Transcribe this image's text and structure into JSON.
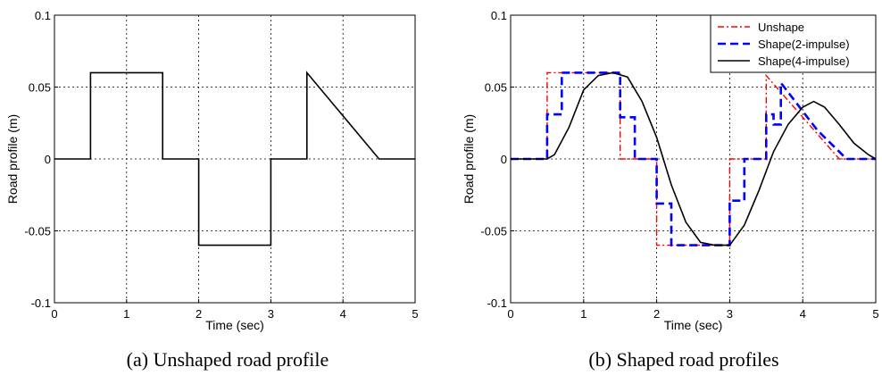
{
  "chart_data": [
    {
      "type": "line",
      "caption": "(a) Unshaped road profile",
      "xlabel": "Time (sec)",
      "ylabel": "Road profile (m)",
      "xlim": [
        0,
        5
      ],
      "ylim": [
        -0.1,
        0.1
      ],
      "xticks": [
        "0",
        "1",
        "2",
        "3",
        "4",
        "5"
      ],
      "yticks": [
        "-0.1",
        "-0.05",
        "0",
        "0.05",
        "0.1"
      ],
      "grid": true,
      "series": [
        {
          "color": "#000000",
          "style": "solid",
          "x": [
            0,
            0.5,
            0.5,
            1.5,
            1.5,
            2.0,
            2.0,
            3.0,
            3.0,
            3.5,
            3.5,
            4.5,
            5.0
          ],
          "y": [
            0,
            0,
            0.06,
            0.06,
            0,
            0,
            -0.06,
            -0.06,
            0,
            0,
            0.06,
            0,
            0
          ]
        }
      ]
    },
    {
      "type": "line",
      "caption": "(b)  Shaped road profiles",
      "xlabel": "Time (sec)",
      "ylabel": "Road profile (m)",
      "xlim": [
        0,
        5
      ],
      "ylim": [
        -0.1,
        0.1
      ],
      "xticks": [
        "0",
        "1",
        "2",
        "3",
        "4",
        "5"
      ],
      "yticks": [
        "-0.1",
        "-0.05",
        "0",
        "0.05",
        "0.1"
      ],
      "grid": true,
      "legend_position": "top-right",
      "series": [
        {
          "name": "Unshape",
          "color": "#ff0000",
          "style": "dashdot",
          "x": [
            0,
            0.5,
            0.5,
            1.5,
            1.5,
            2.0,
            2.0,
            3.0,
            3.0,
            3.5,
            3.5,
            4.5,
            5.0
          ],
          "y": [
            0,
            0,
            0.06,
            0.06,
            0,
            0,
            -0.06,
            -0.06,
            0,
            0,
            0.058,
            0,
            0
          ]
        },
        {
          "name": "Shape(2-impulse)",
          "color": "#0000ff",
          "style": "dashed",
          "x": [
            0,
            0.5,
            0.5,
            0.6,
            0.6,
            0.7,
            0.7,
            1.5,
            1.5,
            1.6,
            1.6,
            1.7,
            1.7,
            2.0,
            2.0,
            2.1,
            2.1,
            2.2,
            2.2,
            3.0,
            3.0,
            3.1,
            3.1,
            3.2,
            3.2,
            3.5,
            3.5,
            3.6,
            3.6,
            3.7,
            3.7,
            4.2,
            4.6,
            5.0
          ],
          "y": [
            0,
            0,
            0.031,
            0.031,
            0.031,
            0.031,
            0.06,
            0.06,
            0.029,
            0.029,
            0.029,
            0.029,
            0,
            0,
            -0.031,
            -0.031,
            -0.031,
            -0.031,
            -0.06,
            -0.06,
            -0.029,
            -0.029,
            -0.029,
            -0.029,
            0,
            0,
            0.031,
            0.031,
            0.024,
            0.024,
            0.053,
            0.02,
            0,
            0
          ]
        },
        {
          "name": "Shape(4-impulse)",
          "color": "#000000",
          "style": "solid",
          "x": [
            0,
            0.5,
            0.6,
            0.8,
            1.0,
            1.2,
            1.4,
            1.6,
            1.8,
            2.0,
            2.2,
            2.4,
            2.6,
            2.8,
            3.0,
            3.2,
            3.4,
            3.6,
            3.8,
            4.0,
            4.15,
            4.3,
            4.5,
            4.7,
            4.9,
            5.0
          ],
          "y": [
            0,
            0,
            0.003,
            0.022,
            0.048,
            0.058,
            0.06,
            0.057,
            0.04,
            0.015,
            -0.018,
            -0.044,
            -0.058,
            -0.06,
            -0.06,
            -0.046,
            -0.022,
            0.005,
            0.024,
            0.036,
            0.04,
            0.036,
            0.024,
            0.011,
            0.003,
            0
          ]
        }
      ]
    }
  ]
}
